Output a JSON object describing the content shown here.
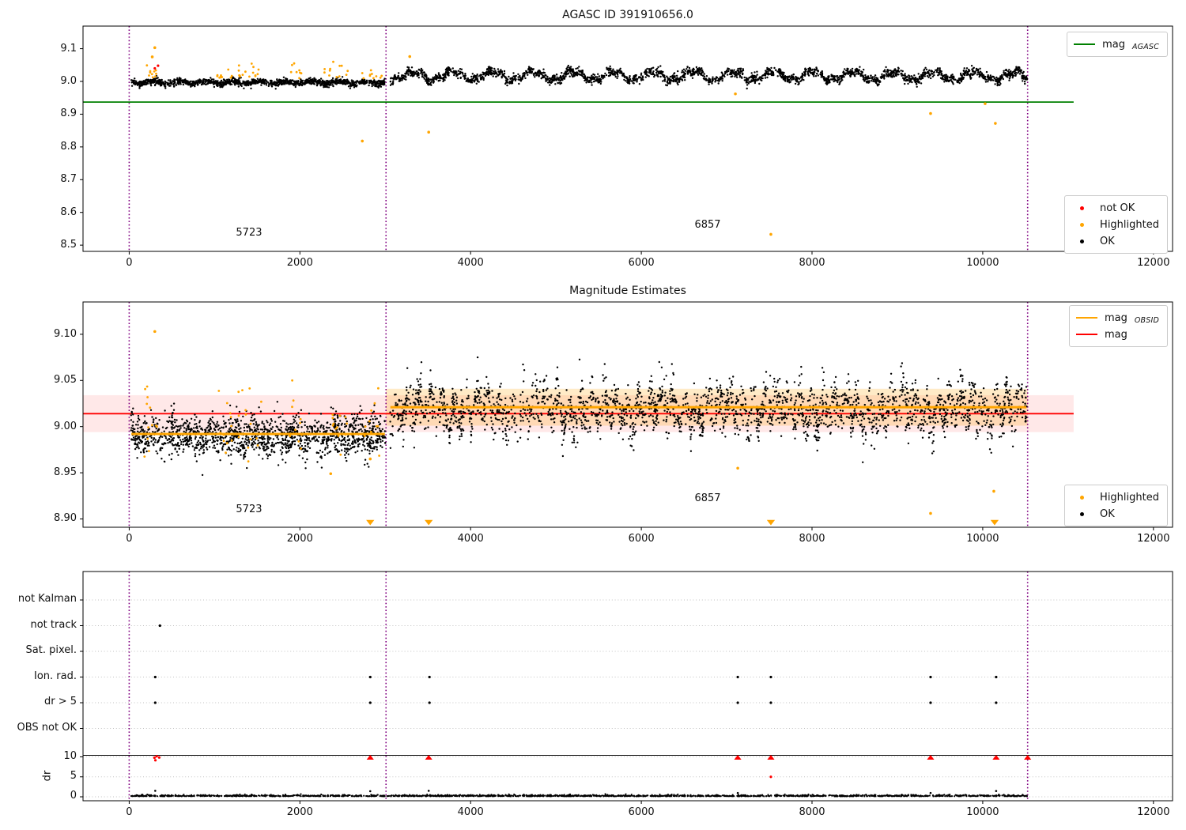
{
  "figure_colors": {
    "ok": "#000000",
    "highlighted": "#ffa500",
    "not_ok": "#ff0000",
    "obsid_boundary": "#800080",
    "agasc_line": "#008000",
    "mag_line": "#ff0000",
    "mag_band": "rgba(255,0,0,0.09)",
    "obsid_band": "rgba(255,165,0,0.22)",
    "grid": "#c2c2c2"
  },
  "chart_data": [
    {
      "type": "scatter",
      "title": "AGASC ID 391910656.0",
      "xlim": [
        -541,
        12224
      ],
      "ylim": [
        8.481,
        9.169
      ],
      "xticks": {
        "values": [
          0,
          2000,
          4000,
          6000,
          8000,
          10000,
          12000
        ],
        "labels": [
          "0",
          "2000",
          "4000",
          "6000",
          "8000",
          "10000",
          "12000"
        ]
      },
      "yticks": {
        "values": [
          8.5,
          8.6,
          8.7,
          8.8,
          8.9,
          9.0,
          9.1
        ],
        "labels": [
          "8.5",
          "8.6",
          "8.7",
          "8.8",
          "8.9",
          "9.0",
          "9.1"
        ]
      },
      "obsid_boundaries": [
        0,
        3009,
        10526
      ],
      "hlines": [
        {
          "name": "mag_AGASC",
          "y": 8.937,
          "x0": -541,
          "x1": 11065,
          "color": "#008000",
          "width": 1.8
        }
      ],
      "scatter_bands": [
        {
          "name": "ok-obsid-5723",
          "color": "#000000",
          "x0": 20,
          "x1": 3000,
          "n": 1300,
          "mean": 8.997,
          "noise": 0.005,
          "waves": [
            [
              0.004,
              310,
              2.1
            ]
          ],
          "clamp": [
            8.962,
            9.03
          ],
          "r": 1.2
        },
        {
          "name": "ok-obsid-6857",
          "color": "#000000",
          "x0": 3055,
          "x1": 10520,
          "n": 2450,
          "mean": 9.017,
          "noise": 0.007,
          "waves": [
            [
              0.013,
              470,
              1.2
            ],
            [
              0.006,
              155,
              0.5
            ]
          ],
          "clamp": [
            8.952,
            9.09
          ],
          "r": 1.2
        }
      ],
      "highlight_bands": [
        {
          "x0": 180,
          "x1": 330,
          "n": 10,
          "mean": 9.012,
          "noise": 0.02,
          "bias": "up",
          "clamp": [
            9.0,
            9.062
          ]
        },
        {
          "x0": 1020,
          "x1": 1130,
          "n": 7,
          "mean": 9.01,
          "noise": 0.018,
          "bias": "up",
          "clamp": [
            9.0,
            9.055
          ]
        },
        {
          "x0": 1150,
          "x1": 1330,
          "n": 9,
          "mean": 9.01,
          "noise": 0.018,
          "bias": "up",
          "clamp": [
            9.0,
            9.055
          ]
        },
        {
          "x0": 1360,
          "x1": 1560,
          "n": 9,
          "mean": 9.012,
          "noise": 0.02,
          "bias": "up",
          "clamp": [
            9.0,
            9.06
          ]
        },
        {
          "x0": 1850,
          "x1": 2060,
          "n": 8,
          "mean": 9.01,
          "noise": 0.018,
          "bias": "up",
          "clamp": [
            9.0,
            9.055
          ]
        },
        {
          "x0": 2280,
          "x1": 2560,
          "n": 12,
          "mean": 9.012,
          "noise": 0.02,
          "bias": "up",
          "clamp": [
            9.0,
            9.06
          ]
        },
        {
          "x0": 2700,
          "x1": 2960,
          "n": 10,
          "mean": 9.008,
          "noise": 0.016,
          "bias": "up",
          "clamp": [
            8.995,
            9.05
          ]
        }
      ],
      "highlight_points": [
        [
          300,
          9.103
        ],
        [
          270,
          9.075
        ],
        [
          3287,
          9.076
        ],
        [
          2731,
          8.818
        ],
        [
          3509,
          8.845
        ],
        [
          7102,
          8.962
        ],
        [
          7518,
          8.533
        ],
        [
          9389,
          8.902
        ],
        [
          10028,
          8.932
        ],
        [
          10148,
          8.872
        ]
      ],
      "not_ok_points": [
        [
          300,
          9.04
        ],
        [
          338,
          9.048
        ]
      ],
      "annotations": [
        {
          "text": "5723",
          "x": 1404,
          "y": 8.534
        },
        {
          "text": "6857",
          "x": 6777,
          "y": 8.558
        }
      ],
      "legends": [
        {
          "id": "legend-mag-agasc",
          "items": [
            {
              "marker": "line",
              "color": "#008000",
              "label": "mag",
              "sub": "AGASC"
            }
          ]
        },
        {
          "id": "legend-quality-top",
          "items": [
            {
              "marker": "dot",
              "color": "#ff0000",
              "label": "not OK"
            },
            {
              "marker": "dot",
              "color": "#ffa500",
              "label": "Highlighted"
            },
            {
              "marker": "dot",
              "color": "#000000",
              "label": "OK"
            }
          ]
        }
      ]
    },
    {
      "type": "scatter",
      "title": "Magnitude Estimates",
      "xlim": [
        -541,
        12224
      ],
      "ylim": [
        8.891,
        9.135
      ],
      "xticks": {
        "values": [
          0,
          2000,
          4000,
          6000,
          8000,
          10000,
          12000
        ],
        "labels": [
          "0",
          "2000",
          "4000",
          "6000",
          "8000",
          "10000",
          "12000"
        ]
      },
      "yticks": {
        "values": [
          8.9,
          8.95,
          9.0,
          9.05,
          9.1
        ],
        "labels": [
          "8.90",
          "8.95",
          "9.00",
          "9.05",
          "9.10"
        ]
      },
      "obsid_boundaries": [
        0,
        3009,
        10526
      ],
      "bands": [
        {
          "name": "mag-error-band",
          "y0": 8.994,
          "y1": 9.034,
          "x0": -541,
          "x1": 11065,
          "color": "rgba(255,0,0,0.09)"
        },
        {
          "name": "obsid-error-band",
          "y0": 9.001,
          "y1": 9.041,
          "x0": 3009,
          "x1": 10526,
          "color": "rgba(255,165,0,0.22)"
        }
      ],
      "mag_line": {
        "name": "mag",
        "y": 9.014,
        "x0": -541,
        "x1": 11065,
        "color": "#ff0000",
        "width": 1.8
      },
      "obsid_lines": [
        {
          "name": "mag_OBSID-5723",
          "x0": 25,
          "x1": 2995,
          "y": 8.992,
          "color": "#ffa500",
          "width": 3
        },
        {
          "name": "mag_OBSID-6857",
          "x0": 3060,
          "x1": 10510,
          "y": 9.021,
          "color": "#ffa500",
          "width": 3
        }
      ],
      "scatter_bands": [
        {
          "name": "ok-obsid-5723",
          "color": "#000000",
          "x0": 20,
          "x1": 3000,
          "n": 1500,
          "mean": 8.99,
          "noise": 0.011,
          "waves": [
            [
              0.004,
              240,
              1.0
            ]
          ],
          "clamp": [
            8.947,
            9.035
          ],
          "r": 1.2
        },
        {
          "name": "ok-obsid-6857",
          "color": "#000000",
          "x0": 3055,
          "x1": 10520,
          "n": 2600,
          "mean": 9.019,
          "noise": 0.013,
          "waves": [
            [
              0.012,
              135,
              0.3
            ],
            [
              0.007,
              700,
              2.2
            ]
          ],
          "clamp": [
            8.955,
            9.075
          ],
          "r": 1.2
        }
      ],
      "highlight_bands": [
        {
          "x0": 180,
          "x1": 330,
          "n": 12,
          "mean": 9.005,
          "noise": 0.02,
          "clamp": [
            8.952,
            9.055
          ]
        },
        {
          "x0": 1020,
          "x1": 1330,
          "n": 16,
          "mean": 9.005,
          "noise": 0.02,
          "clamp": [
            8.952,
            9.055
          ]
        },
        {
          "x0": 1360,
          "x1": 1560,
          "n": 10,
          "mean": 9.005,
          "noise": 0.02,
          "clamp": [
            8.952,
            9.055
          ]
        },
        {
          "x0": 1850,
          "x1": 2060,
          "n": 10,
          "mean": 9.005,
          "noise": 0.018,
          "clamp": [
            8.955,
            9.05
          ]
        },
        {
          "x0": 2280,
          "x1": 2560,
          "n": 12,
          "mean": 9.005,
          "noise": 0.02,
          "clamp": [
            8.952,
            9.055
          ]
        },
        {
          "x0": 2700,
          "x1": 2980,
          "n": 10,
          "mean": 9.0,
          "noise": 0.018,
          "clamp": [
            8.95,
            9.045
          ]
        }
      ],
      "highlight_points": [
        [
          300,
          9.103
        ],
        [
          2361,
          8.949
        ],
        [
          2824,
          8.965
        ],
        [
          7130,
          8.955
        ],
        [
          9389,
          8.906
        ],
        [
          10130,
          8.93
        ]
      ],
      "clipped_low_x": [
        2824,
        3509,
        7518,
        10139
      ],
      "annotations": [
        {
          "text": "5723",
          "x": 1404,
          "y": 8.909
        },
        {
          "text": "6857",
          "x": 6777,
          "y": 8.921
        }
      ],
      "legends": [
        {
          "id": "legend-mag-obsid",
          "items": [
            {
              "marker": "line",
              "color": "#ffa500",
              "label": "mag",
              "sub": "OBSID"
            },
            {
              "marker": "line",
              "color": "#ff0000",
              "label": "mag"
            }
          ]
        },
        {
          "id": "legend-quality-mid",
          "items": [
            {
              "marker": "dot",
              "color": "#ffa500",
              "label": "Highlighted"
            },
            {
              "marker": "dot",
              "color": "#000000",
              "label": "OK"
            }
          ]
        }
      ]
    },
    {
      "type": "timeline-flags",
      "title": "",
      "xlim": [
        -541,
        12224
      ],
      "xticks": {
        "values": [
          0,
          2000,
          4000,
          6000,
          8000,
          10000,
          12000
        ],
        "labels": [
          "0",
          "2000",
          "4000",
          "6000",
          "8000",
          "10000",
          "12000"
        ]
      },
      "obsid_boundaries": [
        0,
        3009,
        10526
      ],
      "categories": [
        "not Kalman",
        "not track",
        "Sat. pixel.",
        "Ion. rad.",
        "dr > 5",
        "OBS not OK"
      ],
      "category_points": [
        [],
        [
          360
        ],
        [],
        [
          305,
          2824,
          3518,
          7130,
          7518,
          9389,
          10157
        ],
        [
          305,
          2824,
          3518,
          7130,
          7518,
          9389,
          10157
        ],
        []
      ],
      "dr_axis": {
        "label": "dr",
        "ticks": {
          "values": [
            0,
            5,
            10
          ],
          "labels": [
            "0",
            "5",
            "10"
          ]
        },
        "threshold_line": 10.4,
        "band": {
          "x0": 20,
          "x1": 10520,
          "n": 1700,
          "mean": 0.12,
          "noise": 0.17,
          "clamp": [
            0.02,
            1.05
          ]
        },
        "ok_outliers": [
          [
            305,
            1.5
          ],
          [
            2824,
            1.4
          ],
          [
            3509,
            1.5
          ],
          [
            7130,
            0.95
          ],
          [
            9389,
            0.95
          ],
          [
            10157,
            1.45
          ]
        ],
        "not_ok_points": [
          [
            296,
            9.8
          ],
          [
            322,
            10.15
          ],
          [
            352,
            9.85
          ],
          [
            307,
            9.15
          ],
          [
            7518,
            5.0
          ]
        ],
        "clipped_high_x": [
          2824,
          3509,
          7130,
          7518,
          9389,
          10157,
          10526
        ]
      }
    }
  ]
}
